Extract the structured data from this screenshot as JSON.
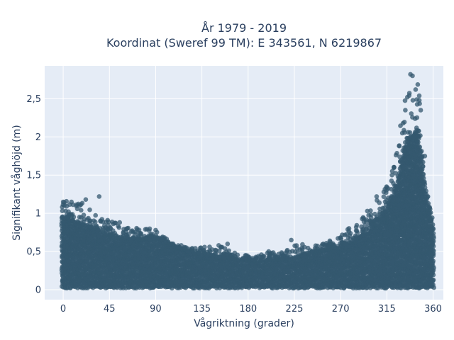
{
  "chart_data": {
    "type": "scatter",
    "title_line1": "År 1979 - 2019",
    "title_line2": "Koordinat (Sweref 99 TM): E 343561, N 6219867",
    "xlabel": "Vågriktning (grader)",
    "ylabel": "Signifikant våghöjd (m)",
    "xlim": [
      -18,
      370
    ],
    "ylim": [
      -0.13,
      2.93
    ],
    "x_ticks": [
      0,
      45,
      90,
      135,
      180,
      225,
      270,
      315,
      360
    ],
    "x_tick_labels": [
      "0",
      "45",
      "90",
      "135",
      "180",
      "225",
      "270",
      "315",
      "360"
    ],
    "y_ticks": [
      0,
      0.5,
      1,
      1.5,
      2,
      2.5
    ],
    "y_tick_labels": [
      "0",
      "0,5",
      "1",
      "1,5",
      "2",
      "2,5"
    ],
    "grid": true,
    "colors": {
      "marker": "#34586f",
      "plot_bg": "#e5ecf6",
      "grid": "#ffffff",
      "text": "#2a3f5f"
    },
    "envelope": {
      "direction_deg": [
        0,
        15,
        30,
        45,
        60,
        75,
        90,
        105,
        120,
        135,
        150,
        165,
        180,
        195,
        210,
        225,
        240,
        255,
        270,
        285,
        300,
        315,
        325,
        335,
        345,
        355,
        360
      ],
      "dense_upper_m": [
        0.95,
        0.88,
        0.8,
        0.72,
        0.68,
        0.66,
        0.7,
        0.58,
        0.5,
        0.47,
        0.42,
        0.4,
        0.38,
        0.38,
        0.4,
        0.42,
        0.48,
        0.52,
        0.58,
        0.65,
        0.8,
        1.05,
        1.4,
        1.95,
        2.1,
        1.05,
        0.8
      ],
      "sparse_max_m": [
        1.15,
        1.2,
        1.0,
        0.9,
        0.85,
        0.8,
        0.8,
        0.62,
        0.55,
        0.55,
        0.6,
        0.5,
        0.45,
        0.5,
        0.5,
        0.65,
        0.55,
        0.62,
        0.7,
        0.9,
        1.05,
        1.4,
        1.85,
        2.82,
        2.8,
        1.2,
        0.9
      ],
      "dense_lower_m": [
        0.02,
        0.02,
        0.02,
        0.02,
        0.02,
        0.02,
        0.02,
        0.02,
        0.02,
        0.02,
        0.02,
        0.02,
        0.02,
        0.02,
        0.02,
        0.02,
        0.02,
        0.02,
        0.02,
        0.02,
        0.02,
        0.02,
        0.02,
        0.02,
        0.02,
        0.02,
        0.02
      ]
    },
    "sample_points": [
      {
        "x": 0,
        "y": 1.15
      },
      {
        "x": 8,
        "y": 1.15
      },
      {
        "x": 22,
        "y": 1.18
      },
      {
        "x": 35,
        "y": 1.22
      },
      {
        "x": 55,
        "y": 0.88
      },
      {
        "x": 90,
        "y": 0.78
      },
      {
        "x": 115,
        "y": 0.58
      },
      {
        "x": 160,
        "y": 0.6
      },
      {
        "x": 200,
        "y": 0.5
      },
      {
        "x": 222,
        "y": 0.65
      },
      {
        "x": 270,
        "y": 0.68
      },
      {
        "x": 296,
        "y": 1.03
      },
      {
        "x": 305,
        "y": 1.22
      },
      {
        "x": 312,
        "y": 1.28
      },
      {
        "x": 320,
        "y": 1.5
      },
      {
        "x": 327,
        "y": 1.88
      },
      {
        "x": 330,
        "y": 2.05
      },
      {
        "x": 333,
        "y": 2.35
      },
      {
        "x": 335,
        "y": 2.52
      },
      {
        "x": 338,
        "y": 2.82
      },
      {
        "x": 340,
        "y": 2.8
      },
      {
        "x": 343,
        "y": 2.62
      },
      {
        "x": 348,
        "y": 2.35
      },
      {
        "x": 352,
        "y": 1.75
      },
      {
        "x": 355,
        "y": 1.22
      }
    ]
  }
}
